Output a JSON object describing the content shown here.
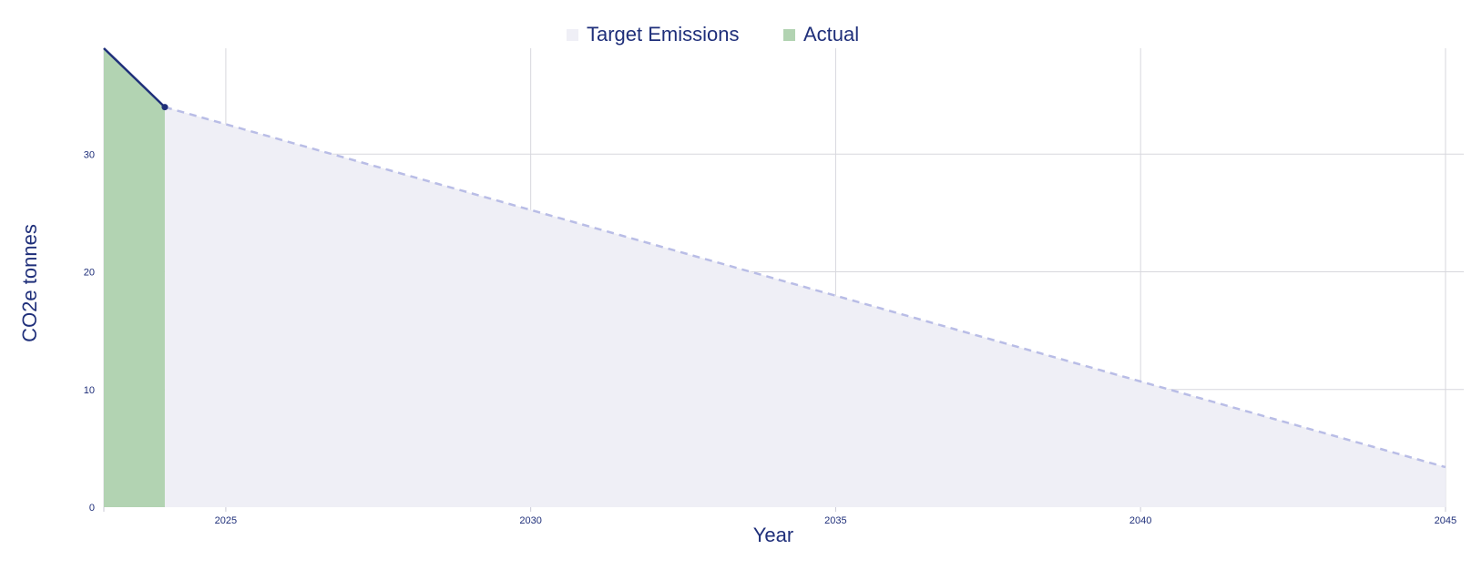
{
  "chart_data": {
    "type": "area",
    "xlabel": "Year",
    "ylabel": "CO2e tonnes",
    "xlim": [
      2023,
      2045.3
    ],
    "ylim": [
      0,
      39
    ],
    "x_ticks": [
      2025,
      2030,
      2035,
      2040,
      2045
    ],
    "y_ticks": [
      0,
      10,
      20,
      30
    ],
    "legend_position": "top-center",
    "series": [
      {
        "name": "Target Emissions",
        "style": "dashed",
        "fill": "#efeff6",
        "line": "#b9bde6",
        "x": [
          2024,
          2045
        ],
        "y": [
          34,
          3.4
        ]
      },
      {
        "name": "Actual",
        "style": "solid",
        "fill": "#b2d3b2",
        "line": "#1f2f7a",
        "x": [
          2023,
          2024
        ],
        "y": [
          39,
          34
        ]
      }
    ],
    "colors": {
      "text": "#1f2f7a",
      "grid": "#d7d7dd",
      "axis": "#c9c9d6"
    }
  }
}
